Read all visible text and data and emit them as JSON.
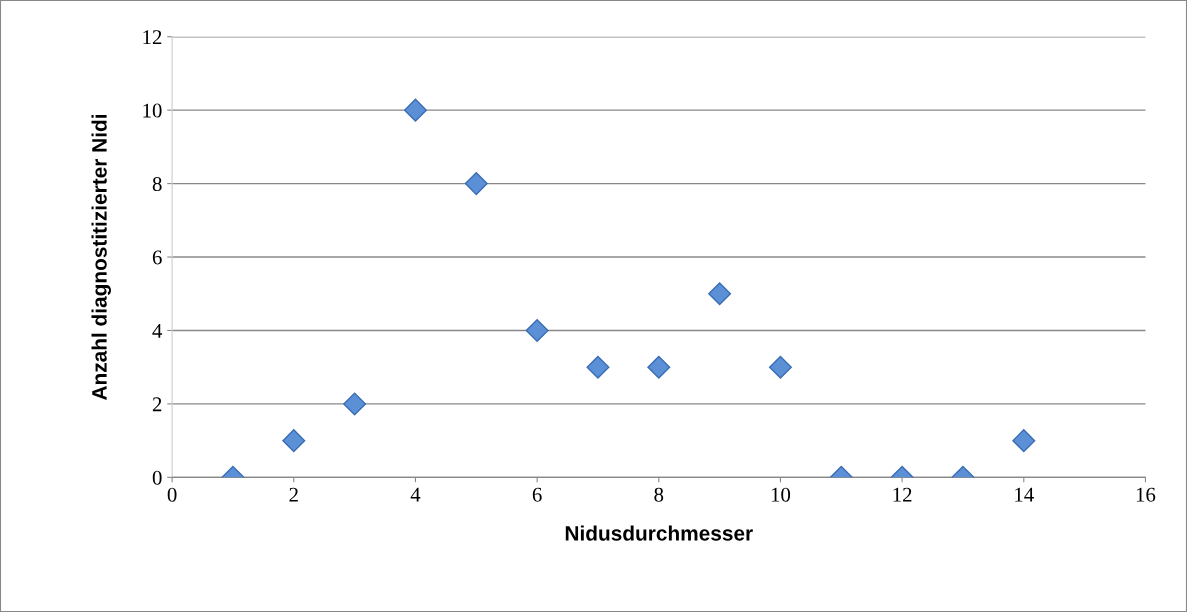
{
  "chart_data": {
    "type": "scatter",
    "xlabel": "Nidusdurchmesser",
    "ylabel": "Anzahl diagnostitizierter Nidi",
    "x": [
      1,
      2,
      3,
      4,
      5,
      6,
      7,
      8,
      9,
      10,
      11,
      12,
      13,
      14
    ],
    "series": [
      {
        "color": "#5b8fd6",
        "values": [
          0,
          1,
          2,
          10,
          8,
          4,
          3,
          3,
          5,
          3,
          0,
          0,
          0,
          1
        ]
      }
    ],
    "xlim": [
      0,
      16
    ],
    "xticks": [
      0,
      2,
      4,
      6,
      8,
      10,
      12,
      14,
      16
    ],
    "ylim": [
      0,
      12
    ],
    "yticks": [
      0,
      2,
      4,
      6,
      8,
      10,
      12
    ],
    "grid": "y",
    "marker": "diamond",
    "legend": false
  }
}
